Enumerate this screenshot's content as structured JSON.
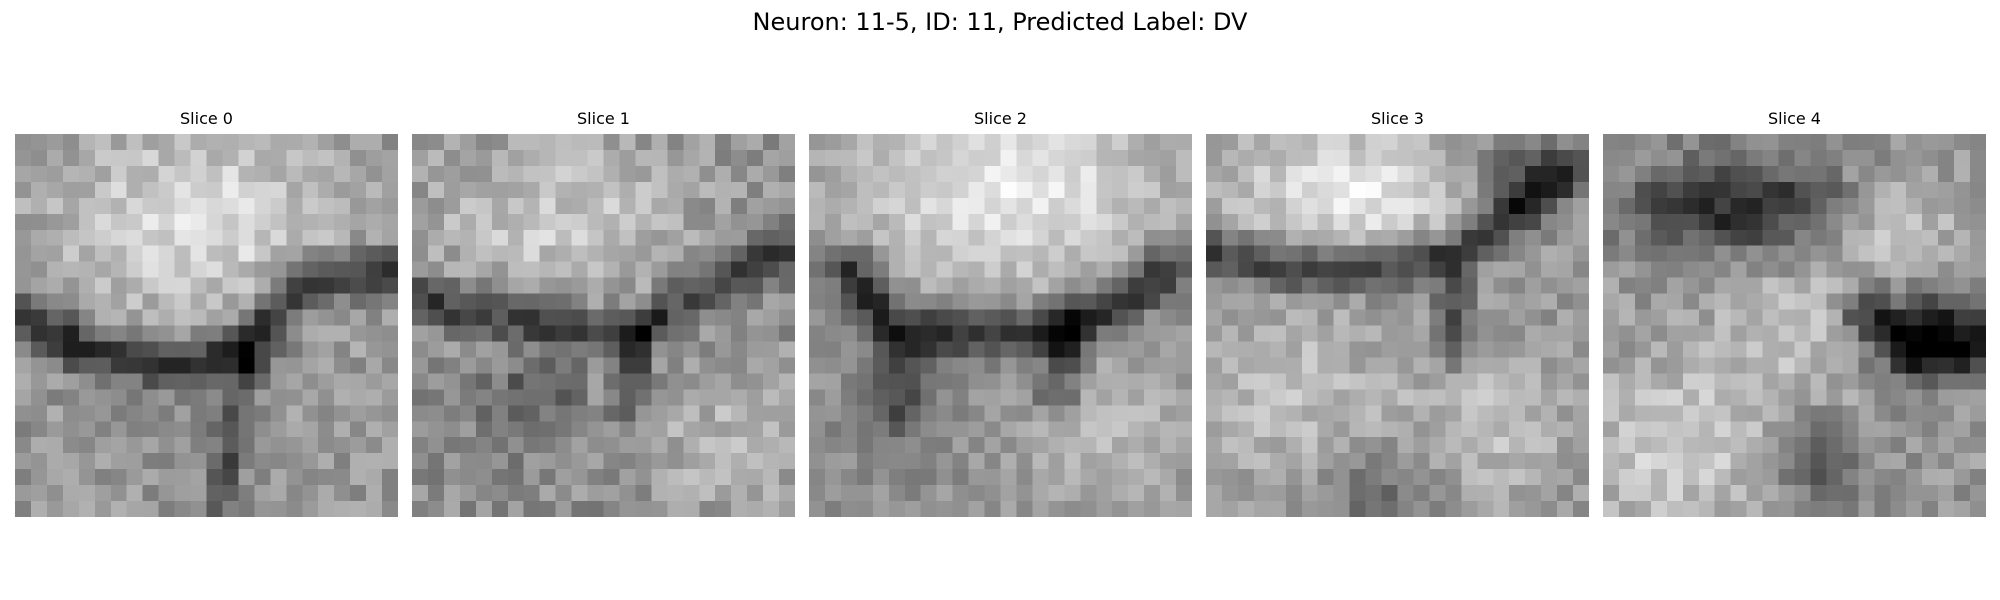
{
  "figure": {
    "title": "Neuron: 11-5, ID: 11, Predicted Label: DV"
  },
  "slices": [
    {
      "title": "Slice 0",
      "image": "grayscale-em-patch",
      "description_features": [
        "bright-blob-top",
        "dark-membrane-diagonal"
      ]
    },
    {
      "title": "Slice 1",
      "image": "grayscale-em-patch",
      "description_features": [
        "bright-blob-top-left",
        "dark-membrane-middle"
      ]
    },
    {
      "title": "Slice 2",
      "image": "grayscale-em-patch",
      "description_features": [
        "bright-blob-top",
        "dark-membrane-curve"
      ]
    },
    {
      "title": "Slice 3",
      "image": "grayscale-em-patch",
      "description_features": [
        "bright-blob-top",
        "dark-band-upper"
      ]
    },
    {
      "title": "Slice 4",
      "image": "grayscale-em-patch",
      "description_features": [
        "dark-region-top",
        "dark-blob-right"
      ]
    }
  ]
}
